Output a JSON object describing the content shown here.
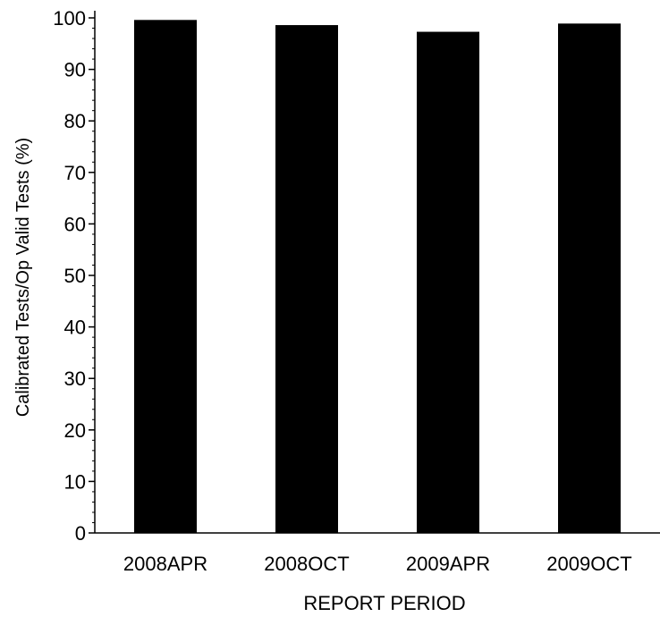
{
  "chart_data": {
    "type": "bar",
    "categories": [
      "2008APR",
      "2008OCT",
      "2009APR",
      "2009OCT"
    ],
    "values": [
      99.6,
      98.6,
      97.3,
      98.9
    ],
    "xlabel": "REPORT PERIOD",
    "ylabel": "Calibrated Tests/Op Valid Tests (%)",
    "ylim": [
      0,
      100
    ],
    "y_ticks": [
      0,
      10,
      20,
      30,
      40,
      50,
      60,
      70,
      80,
      90,
      100
    ],
    "grid": false,
    "legend": "none",
    "colors": {
      "bar": "#000000",
      "axis": "#000000",
      "background": "#ffffff"
    }
  }
}
